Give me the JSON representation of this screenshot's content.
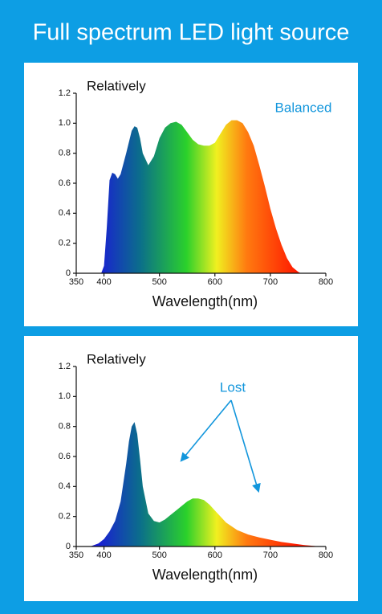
{
  "title": "Full spectrum LED light source",
  "chart_data": [
    {
      "type": "area",
      "ylabel": "Relatively",
      "xlabel": "Wavelength(nm)",
      "annotation": "Balanced",
      "x": [
        395,
        400,
        405,
        410,
        415,
        420,
        425,
        430,
        440,
        450,
        455,
        460,
        465,
        470,
        480,
        490,
        500,
        510,
        520,
        530,
        540,
        550,
        560,
        570,
        580,
        590,
        600,
        610,
        620,
        630,
        640,
        650,
        660,
        670,
        680,
        690,
        700,
        710,
        720,
        730,
        740,
        750,
        755
      ],
      "y": [
        0,
        0.05,
        0.3,
        0.62,
        0.67,
        0.66,
        0.63,
        0.66,
        0.8,
        0.95,
        0.98,
        0.97,
        0.9,
        0.8,
        0.72,
        0.78,
        0.9,
        0.97,
        1.0,
        1.01,
        0.99,
        0.94,
        0.89,
        0.86,
        0.85,
        0.85,
        0.87,
        0.93,
        0.99,
        1.02,
        1.02,
        1.0,
        0.94,
        0.85,
        0.72,
        0.58,
        0.43,
        0.3,
        0.19,
        0.1,
        0.04,
        0.01,
        0
      ],
      "xlim": [
        350,
        800
      ],
      "xticks": [
        350,
        400,
        500,
        600,
        700,
        800
      ],
      "ylim": [
        0,
        1.2
      ],
      "yticks": [
        0,
        0.2,
        0.4,
        0.6,
        0.8,
        {
          "value": 1,
          "label": "1.0"
        },
        1.2
      ]
    },
    {
      "type": "area",
      "ylabel": "Relatively",
      "xlabel": "Wavelength(nm)",
      "annotation": "Lost",
      "x": [
        375,
        390,
        400,
        410,
        420,
        430,
        440,
        445,
        450,
        455,
        460,
        465,
        470,
        480,
        490,
        500,
        510,
        520,
        530,
        540,
        550,
        560,
        570,
        580,
        590,
        600,
        620,
        640,
        660,
        680,
        700,
        720,
        740,
        760,
        780,
        790
      ],
      "y": [
        0,
        0.02,
        0.05,
        0.1,
        0.17,
        0.3,
        0.55,
        0.7,
        0.8,
        0.83,
        0.75,
        0.58,
        0.4,
        0.22,
        0.17,
        0.16,
        0.18,
        0.21,
        0.24,
        0.27,
        0.3,
        0.32,
        0.32,
        0.31,
        0.28,
        0.24,
        0.16,
        0.11,
        0.08,
        0.06,
        0.045,
        0.03,
        0.02,
        0.01,
        0.003,
        0
      ],
      "xlim": [
        350,
        800
      ],
      "xticks": [
        350,
        400,
        500,
        600,
        700,
        800
      ],
      "ylim": [
        0,
        1.2
      ],
      "yticks": [
        0,
        0.2,
        0.4,
        0.6,
        0.8,
        {
          "value": 1,
          "label": "1.0"
        },
        1.2
      ]
    }
  ]
}
